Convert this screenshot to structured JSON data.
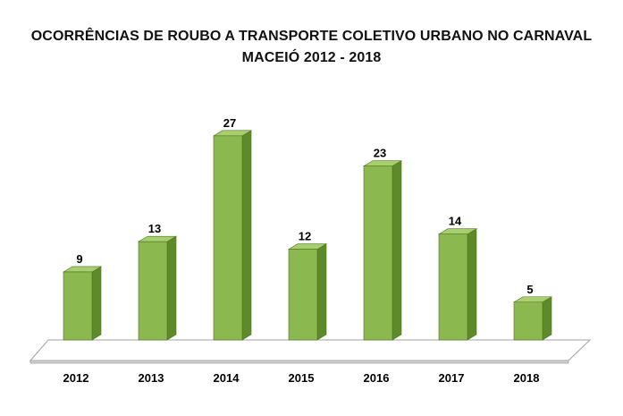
{
  "chart_data": {
    "type": "bar",
    "title": "OCORRÊNCIAS DE ROUBO A TRANSPORTE COLETIVO URBANO NO CARNAVAL",
    "subtitle": "MACEIÓ 2012 - 2018",
    "xlabel": "",
    "ylabel": "",
    "categories": [
      "2012",
      "2013",
      "2014",
      "2015",
      "2016",
      "2017",
      "2018"
    ],
    "values": [
      9,
      13,
      27,
      12,
      23,
      14,
      5
    ],
    "ylim": [
      0,
      27
    ],
    "grid": false,
    "legend": "none",
    "style": "3d-column",
    "colors": {
      "bar_front": "#8CB850",
      "bar_side": "#5E8A2A",
      "bar_top": "#A7CF6E",
      "bar_edge": "#4F7422",
      "floor": "#FFFFFF",
      "floor_edge": "#A0A0A0"
    }
  }
}
